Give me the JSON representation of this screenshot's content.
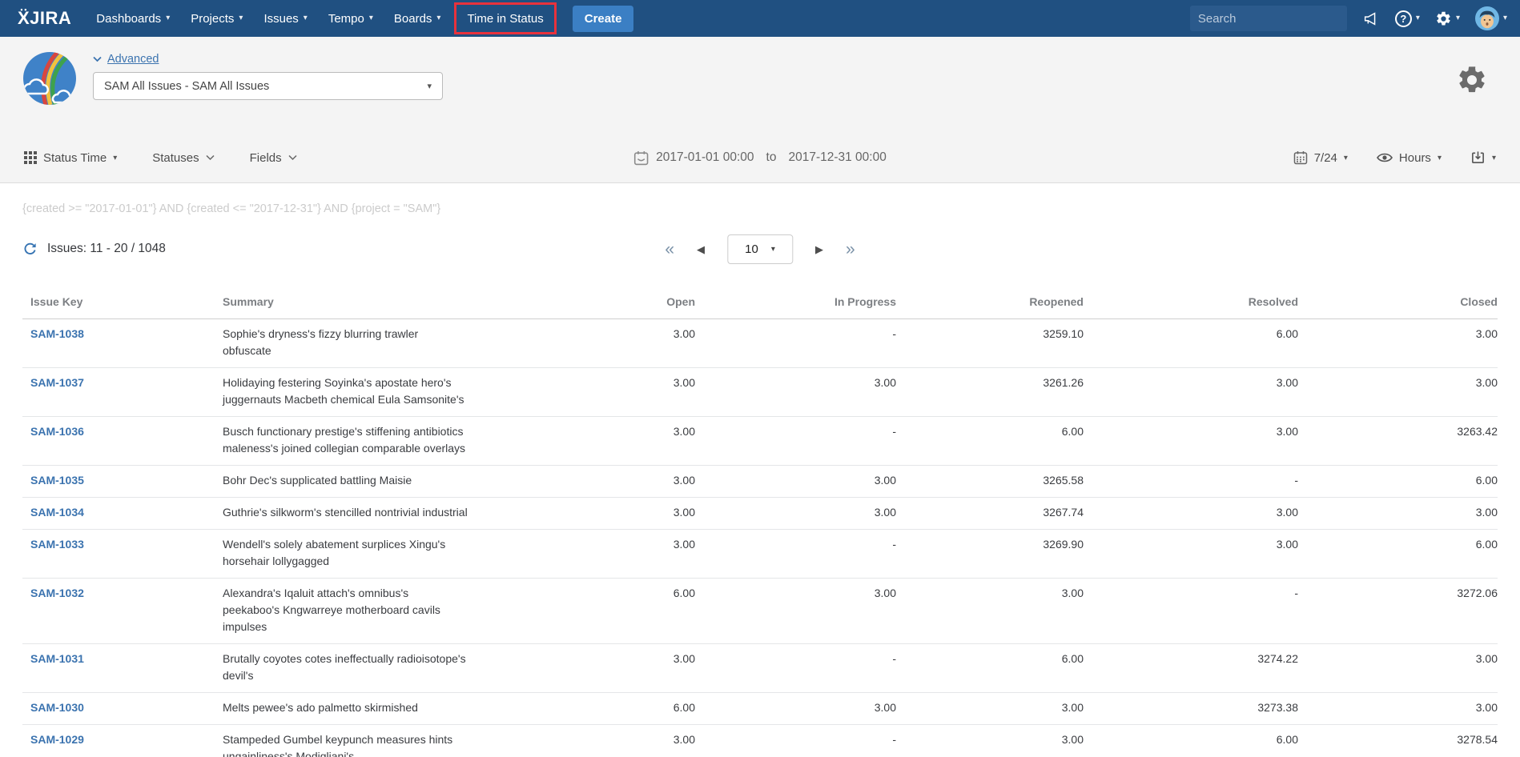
{
  "navbar": {
    "logo": "ẌJIRA",
    "items": [
      {
        "label": "Dashboards"
      },
      {
        "label": "Projects"
      },
      {
        "label": "Issues"
      },
      {
        "label": "Tempo"
      },
      {
        "label": "Boards"
      }
    ],
    "time_in_status": "Time in Status",
    "create": "Create",
    "search_placeholder": "Search"
  },
  "header": {
    "advanced": "Advanced",
    "filter": "SAM All Issues - SAM All Issues"
  },
  "toolbar": {
    "status_time": "Status Time",
    "statuses": "Statuses",
    "fields": "Fields",
    "date_from": "2017-01-01 00:00",
    "to": "to",
    "date_to": "2017-12-31 00:00",
    "day_mode": "7/24",
    "unit": "Hours"
  },
  "query": "{created >= \"2017-01-01\"} AND {created <= \"2017-12-31\"} AND {project = \"SAM\"}",
  "results": {
    "issues": "Issues: 11 - 20 / 1048",
    "page_size": "10"
  },
  "icons": {
    "caret_down": "▾",
    "help": "?",
    "first": "«",
    "prev": "◀",
    "next": "▶",
    "last": "»"
  },
  "colors": {
    "navbar_bg": "#205081",
    "create_button": "#3b7fc4",
    "highlight_red": "#e8323c",
    "link_blue": "#3b73af"
  },
  "table": {
    "columns": [
      "Issue Key",
      "Summary",
      "Open",
      "In Progress",
      "Reopened",
      "Resolved",
      "Closed"
    ],
    "rows": [
      {
        "key": "SAM-1038",
        "summary": "Sophie's dryness's fizzy blurring trawler\nobfuscate",
        "open": "3.00",
        "in_progress": "-",
        "reopened": "3259.10",
        "resolved": "6.00",
        "closed": "3.00"
      },
      {
        "key": "SAM-1037",
        "summary": "Holidaying festering Soyinka's apostate hero's\njuggernauts Macbeth chemical Eula Samsonite's",
        "open": "3.00",
        "in_progress": "3.00",
        "reopened": "3261.26",
        "resolved": "3.00",
        "closed": "3.00"
      },
      {
        "key": "SAM-1036",
        "summary": "Busch functionary prestige's stiffening antibiotics\nmaleness's joined collegian comparable overlays",
        "open": "3.00",
        "in_progress": "-",
        "reopened": "6.00",
        "resolved": "3.00",
        "closed": "3263.42"
      },
      {
        "key": "SAM-1035",
        "summary": "Bohr Dec's supplicated battling Maisie",
        "open": "3.00",
        "in_progress": "3.00",
        "reopened": "3265.58",
        "resolved": "-",
        "closed": "6.00"
      },
      {
        "key": "SAM-1034",
        "summary": "Guthrie's silkworm's stencilled nontrivial industrial",
        "open": "3.00",
        "in_progress": "3.00",
        "reopened": "3267.74",
        "resolved": "3.00",
        "closed": "3.00"
      },
      {
        "key": "SAM-1033",
        "summary": "Wendell's solely abatement surplices Xingu's\nhorsehair lollygagged",
        "open": "3.00",
        "in_progress": "-",
        "reopened": "3269.90",
        "resolved": "3.00",
        "closed": "6.00"
      },
      {
        "key": "SAM-1032",
        "summary": "Alexandra's Iqaluit attach's omnibus's\npeekaboo's Kngwarreye motherboard cavils\nimpulses",
        "open": "6.00",
        "in_progress": "3.00",
        "reopened": "3.00",
        "resolved": "-",
        "closed": "3272.06"
      },
      {
        "key": "SAM-1031",
        "summary": "Brutally coyotes cotes ineffectually radioisotope's\ndevil's",
        "open": "3.00",
        "in_progress": "-",
        "reopened": "6.00",
        "resolved": "3274.22",
        "closed": "3.00"
      },
      {
        "key": "SAM-1030",
        "summary": "Melts pewee's ado palmetto skirmished",
        "open": "6.00",
        "in_progress": "3.00",
        "reopened": "3.00",
        "resolved": "3273.38",
        "closed": "3.00"
      },
      {
        "key": "SAM-1029",
        "summary": "Stampeded Gumbel keypunch measures hints\nungainliness's Modigliani's",
        "open": "3.00",
        "in_progress": "-",
        "reopened": "3.00",
        "resolved": "6.00",
        "closed": "3278.54"
      }
    ]
  }
}
